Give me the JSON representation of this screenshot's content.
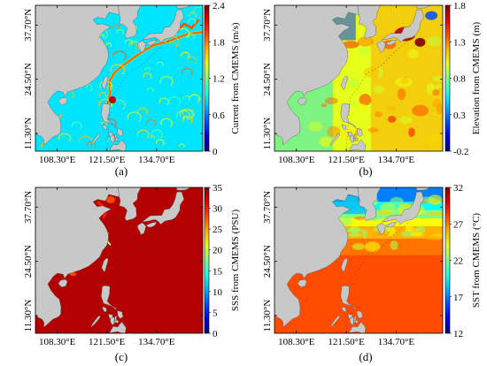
{
  "chart_data": [
    {
      "type": "heatmap",
      "panel_label": "(a)",
      "colorbar_label": "Current from CMEMS (m/s)",
      "colormap": "jet",
      "clim": [
        0,
        2.4
      ],
      "colorbar_ticks": [
        "0",
        "0.6",
        "1.2",
        "1.8",
        "2.4"
      ],
      "colorbar_tick_values": [
        0,
        0.6,
        1.2,
        1.8,
        2.4
      ],
      "background_level": 0.35,
      "feature_kind": "eddies",
      "x_ticks": [
        "108.30°E",
        "121.50°E",
        "134.70°E"
      ],
      "x_tick_values": [
        108.3,
        121.5,
        134.7
      ],
      "y_ticks": [
        "11.30°N",
        "24.50°N",
        "37.70°N"
      ],
      "y_tick_values": [
        11.3,
        24.5,
        37.7
      ],
      "xlim": [
        102.5,
        147.0
      ],
      "ylim": [
        7.0,
        42.5
      ]
    },
    {
      "type": "heatmap",
      "panel_label": "(b)",
      "colorbar_label": "Elevation from CMEMS (m)",
      "colormap": "jet",
      "clim": [
        -0.2,
        1.8
      ],
      "colorbar_ticks": [
        "-0.2",
        "0.3",
        "0.8",
        "1.3",
        "1.8"
      ],
      "colorbar_tick_values": [
        -0.2,
        0.3,
        0.8,
        1.3,
        1.8
      ],
      "background_level": 0.6,
      "feature_kind": "sla",
      "x_ticks": [
        "108.30°E",
        "121.50°E",
        "134.70°E"
      ],
      "x_tick_values": [
        108.3,
        121.5,
        134.7
      ],
      "y_ticks": [
        "11.30°N",
        "24.50°N",
        "37.70°N"
      ],
      "y_tick_values": [
        11.3,
        24.5,
        37.7
      ],
      "xlim": [
        102.5,
        147.0
      ],
      "ylim": [
        7.0,
        42.5
      ]
    },
    {
      "type": "heatmap",
      "panel_label": "(c)",
      "colorbar_label": "SSS from CMEMS (PSU)",
      "colormap": "jet",
      "clim": [
        0,
        35
      ],
      "colorbar_ticks": [
        "0",
        "5",
        "10",
        "15",
        "20",
        "25",
        "30",
        "35"
      ],
      "colorbar_tick_values": [
        0,
        5,
        10,
        15,
        20,
        25,
        30,
        35
      ],
      "background_level": 0.95,
      "feature_kind": "salinity",
      "x_ticks": [
        "108.30°E",
        "121.50°E",
        "134.70°E"
      ],
      "x_tick_values": [
        108.3,
        121.5,
        134.7
      ],
      "y_ticks": [
        "11.30°N",
        "24.50°N",
        "37.70°N"
      ],
      "y_tick_values": [
        11.3,
        24.5,
        37.7
      ],
      "xlim": [
        102.5,
        147.0
      ],
      "ylim": [
        7.0,
        42.5
      ]
    },
    {
      "type": "heatmap",
      "panel_label": "(d)",
      "colorbar_label": "SST from CMEMS (°C)",
      "colormap": "jet",
      "clim": [
        12,
        32
      ],
      "colorbar_ticks": [
        "12",
        "17",
        "22",
        "27",
        "32"
      ],
      "colorbar_tick_values": [
        12,
        17,
        22,
        27,
        32
      ],
      "background_level": 0.8,
      "feature_kind": "temperature",
      "x_ticks": [
        "108.30°E",
        "121.50°E",
        "134.70°E"
      ],
      "x_tick_values": [
        108.3,
        121.5,
        134.7
      ],
      "y_ticks": [
        "11.30°N",
        "24.50°N",
        "37.70°N"
      ],
      "y_tick_values": [
        11.3,
        24.5,
        37.7
      ],
      "xlim": [
        102.5,
        147.0
      ],
      "ylim": [
        7.0,
        42.5
      ]
    }
  ],
  "colors": {
    "land": "#c8c8c8",
    "coastline": "#555555",
    "axis": "#000000"
  }
}
